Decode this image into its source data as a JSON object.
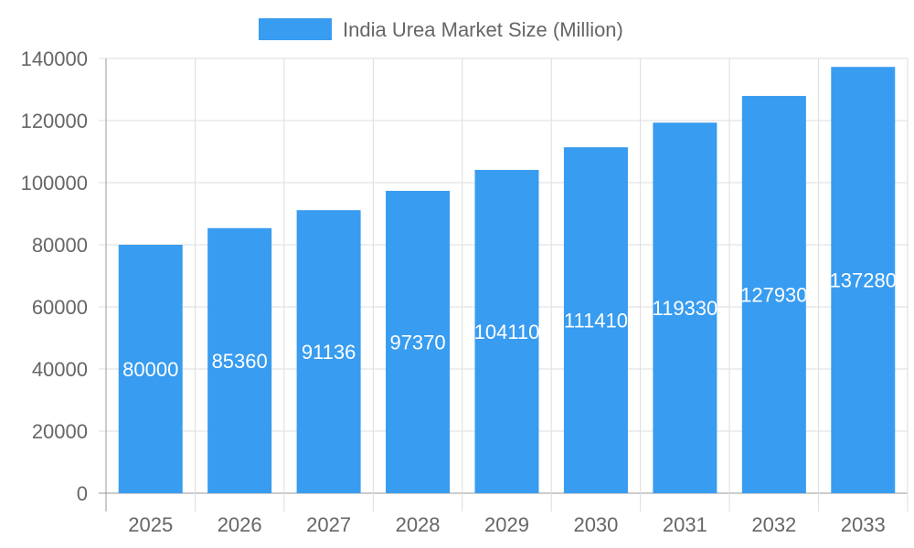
{
  "chart_data": {
    "type": "bar",
    "categories": [
      "2025",
      "2026",
      "2027",
      "2028",
      "2029",
      "2030",
      "2031",
      "2032",
      "2033"
    ],
    "series": [
      {
        "name": "India Urea Market Size (Million)",
        "values": [
          80000,
          85360,
          91136,
          97370,
          104110,
          111410,
          119330,
          127930,
          137280
        ]
      }
    ],
    "ylim": [
      0,
      140000
    ],
    "yticks": [
      0,
      20000,
      40000,
      60000,
      80000,
      100000,
      120000,
      140000
    ],
    "grid": true,
    "legend": "top",
    "data_labels": true,
    "bar_color": "#389cf0"
  }
}
